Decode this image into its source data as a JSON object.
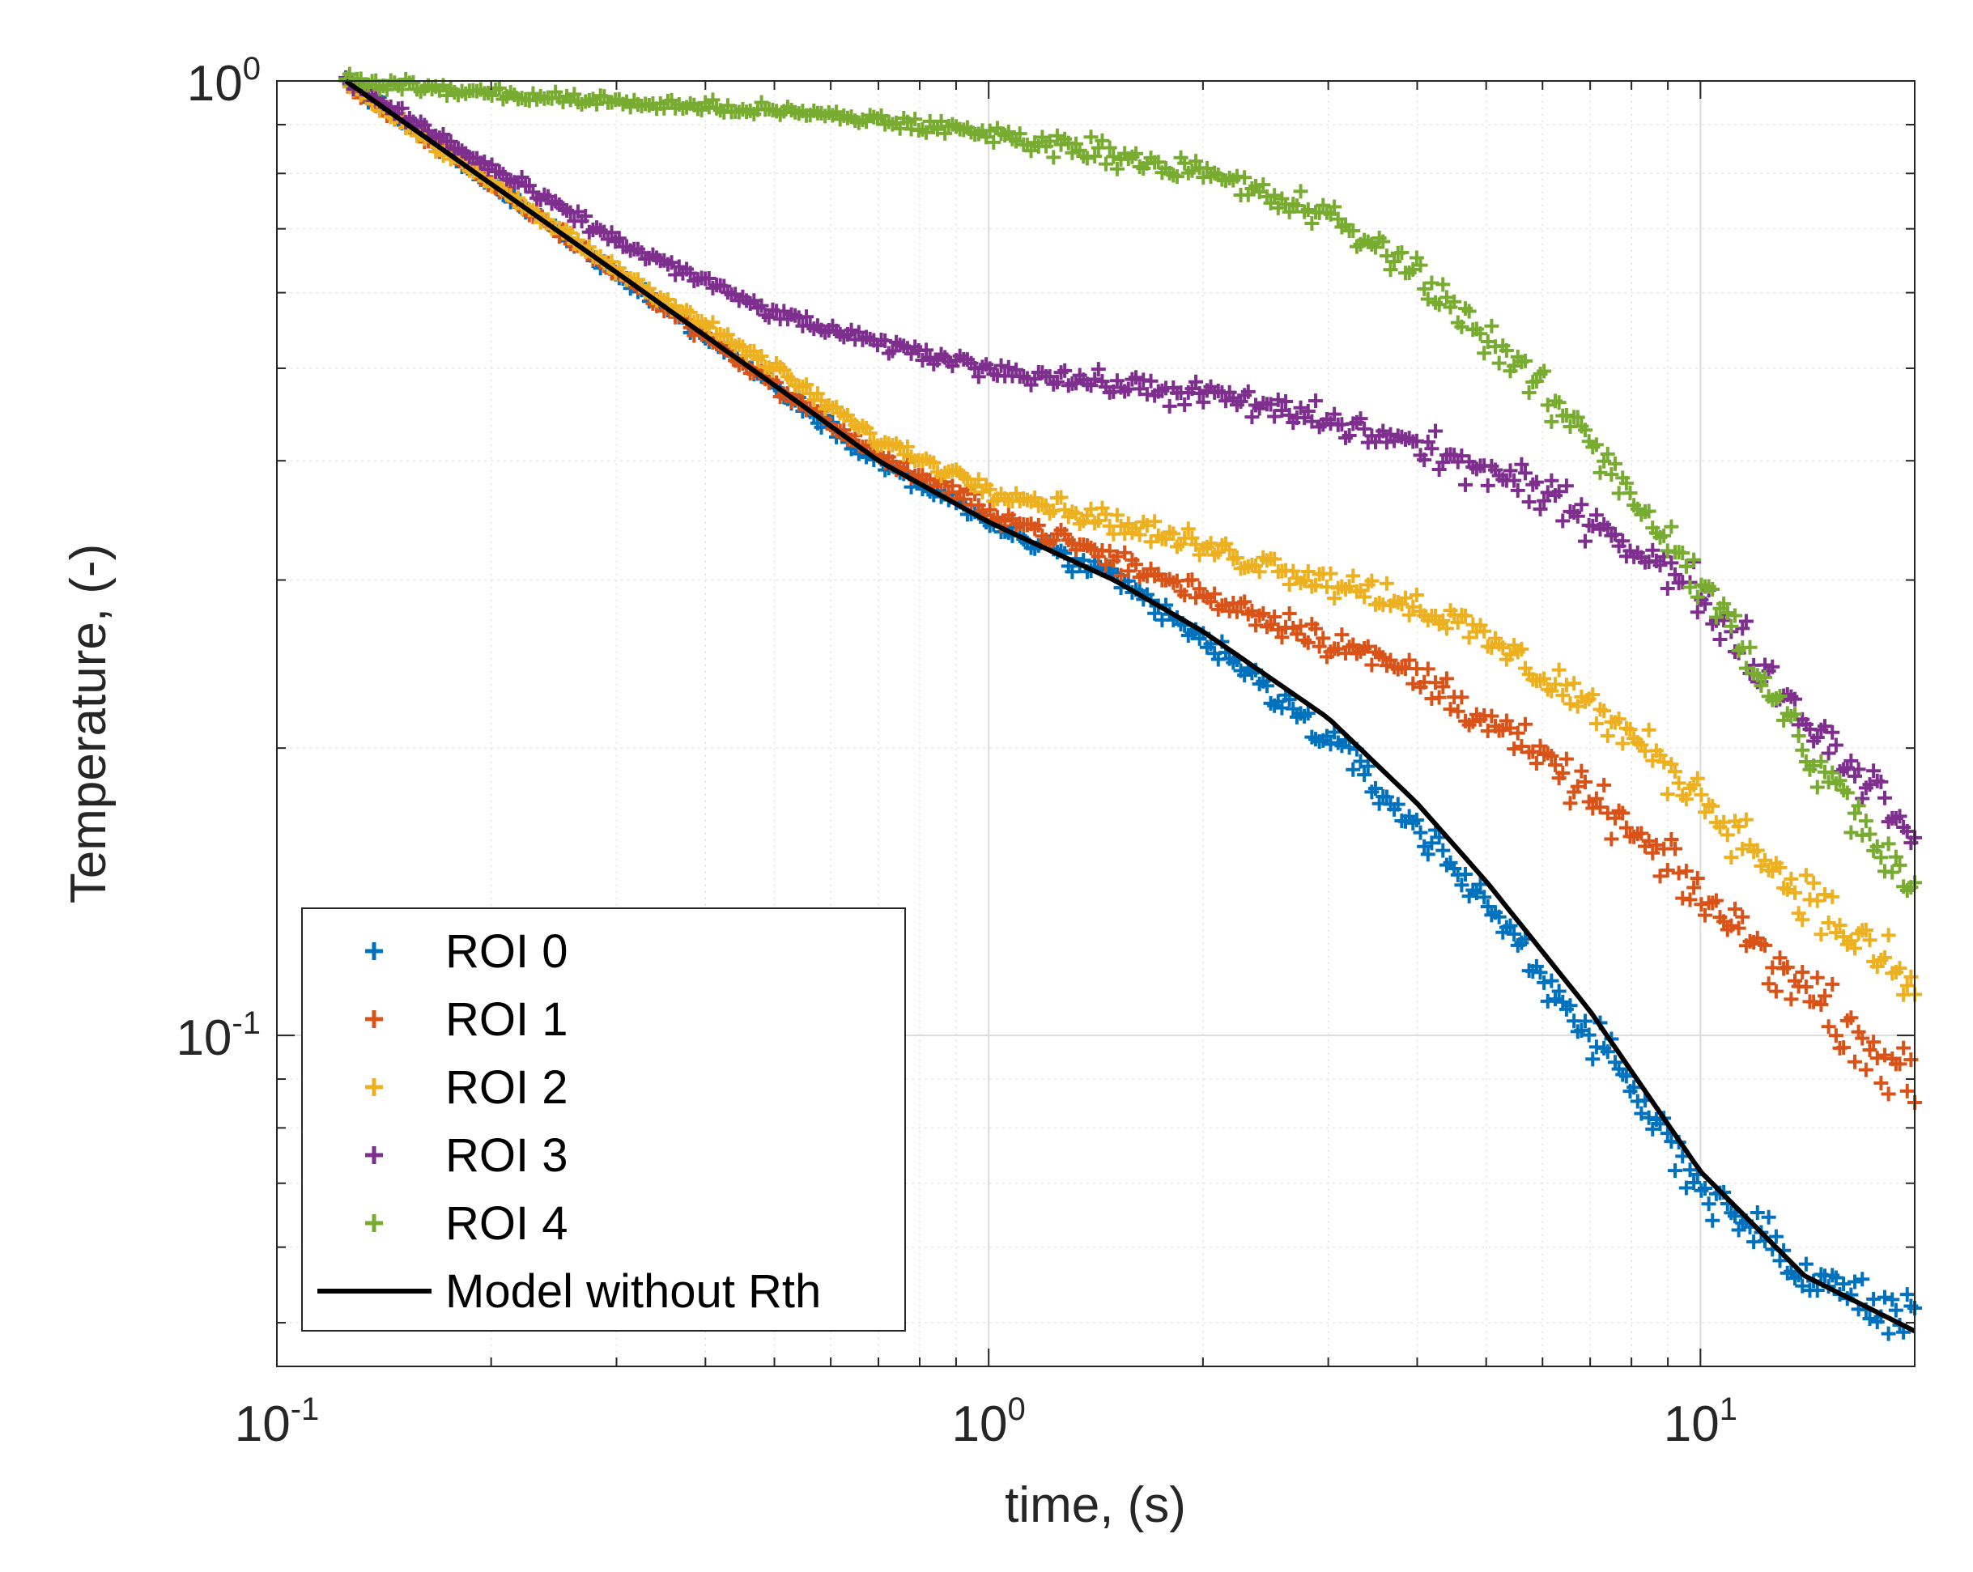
{
  "chart_data": {
    "type": "scatter",
    "title": "",
    "xlabel": "time, (s)",
    "ylabel": "Temperature, (-)",
    "xscale": "log",
    "yscale": "log",
    "xlim": [
      0.1,
      20
    ],
    "ylim": [
      0.045,
      1
    ],
    "grid": true,
    "legend_position": "bottom-left",
    "x_ticks": [
      {
        "base": "10",
        "exp": "-1"
      },
      {
        "base": "10",
        "exp": "0"
      },
      {
        "base": "10",
        "exp": "1"
      }
    ],
    "y_ticks": [
      {
        "base": "10",
        "exp": "-1"
      },
      {
        "base": "10",
        "exp": "0"
      }
    ],
    "x": [
      0.125,
      0.2,
      0.3,
      0.5,
      0.7,
      1.0,
      1.5,
      2.0,
      3.0,
      4.0,
      5.0,
      7.0,
      10.0,
      14.0,
      20.0
    ],
    "series": [
      {
        "name": "ROI 0",
        "marker": "+",
        "color": "#0072BD",
        "values": [
          1.0,
          0.78,
          0.63,
          0.48,
          0.4,
          0.345,
          0.3,
          0.26,
          0.205,
          0.165,
          0.138,
          0.1,
          0.07,
          0.056,
          0.05
        ]
      },
      {
        "name": "ROI 1",
        "marker": "+",
        "color": "#D95319",
        "values": [
          1.0,
          0.78,
          0.63,
          0.48,
          0.405,
          0.355,
          0.315,
          0.29,
          0.26,
          0.238,
          0.215,
          0.178,
          0.14,
          0.112,
          0.088
        ]
      },
      {
        "name": "ROI 2",
        "marker": "+",
        "color": "#EDB120",
        "values": [
          1.0,
          0.78,
          0.635,
          0.5,
          0.42,
          0.375,
          0.345,
          0.325,
          0.3,
          0.283,
          0.26,
          0.222,
          0.178,
          0.14,
          0.112
        ]
      },
      {
        "name": "ROI 3",
        "marker": "+",
        "color": "#7E2F8E",
        "values": [
          1.0,
          0.81,
          0.68,
          0.57,
          0.53,
          0.5,
          0.48,
          0.47,
          0.44,
          0.415,
          0.39,
          0.35,
          0.29,
          0.215,
          0.165
        ]
      },
      {
        "name": "ROI 4",
        "marker": "+",
        "color": "#77AC30",
        "values": [
          1.0,
          0.97,
          0.95,
          0.93,
          0.91,
          0.88,
          0.84,
          0.8,
          0.72,
          0.63,
          0.54,
          0.42,
          0.3,
          0.2,
          0.14
        ]
      },
      {
        "name": "Model without Rth",
        "marker": "line",
        "color": "#000000",
        "values": [
          1.0,
          0.78,
          0.63,
          0.48,
          0.4,
          0.345,
          0.3,
          0.265,
          0.215,
          0.175,
          0.145,
          0.106,
          0.072,
          0.056,
          0.049
        ]
      }
    ]
  }
}
